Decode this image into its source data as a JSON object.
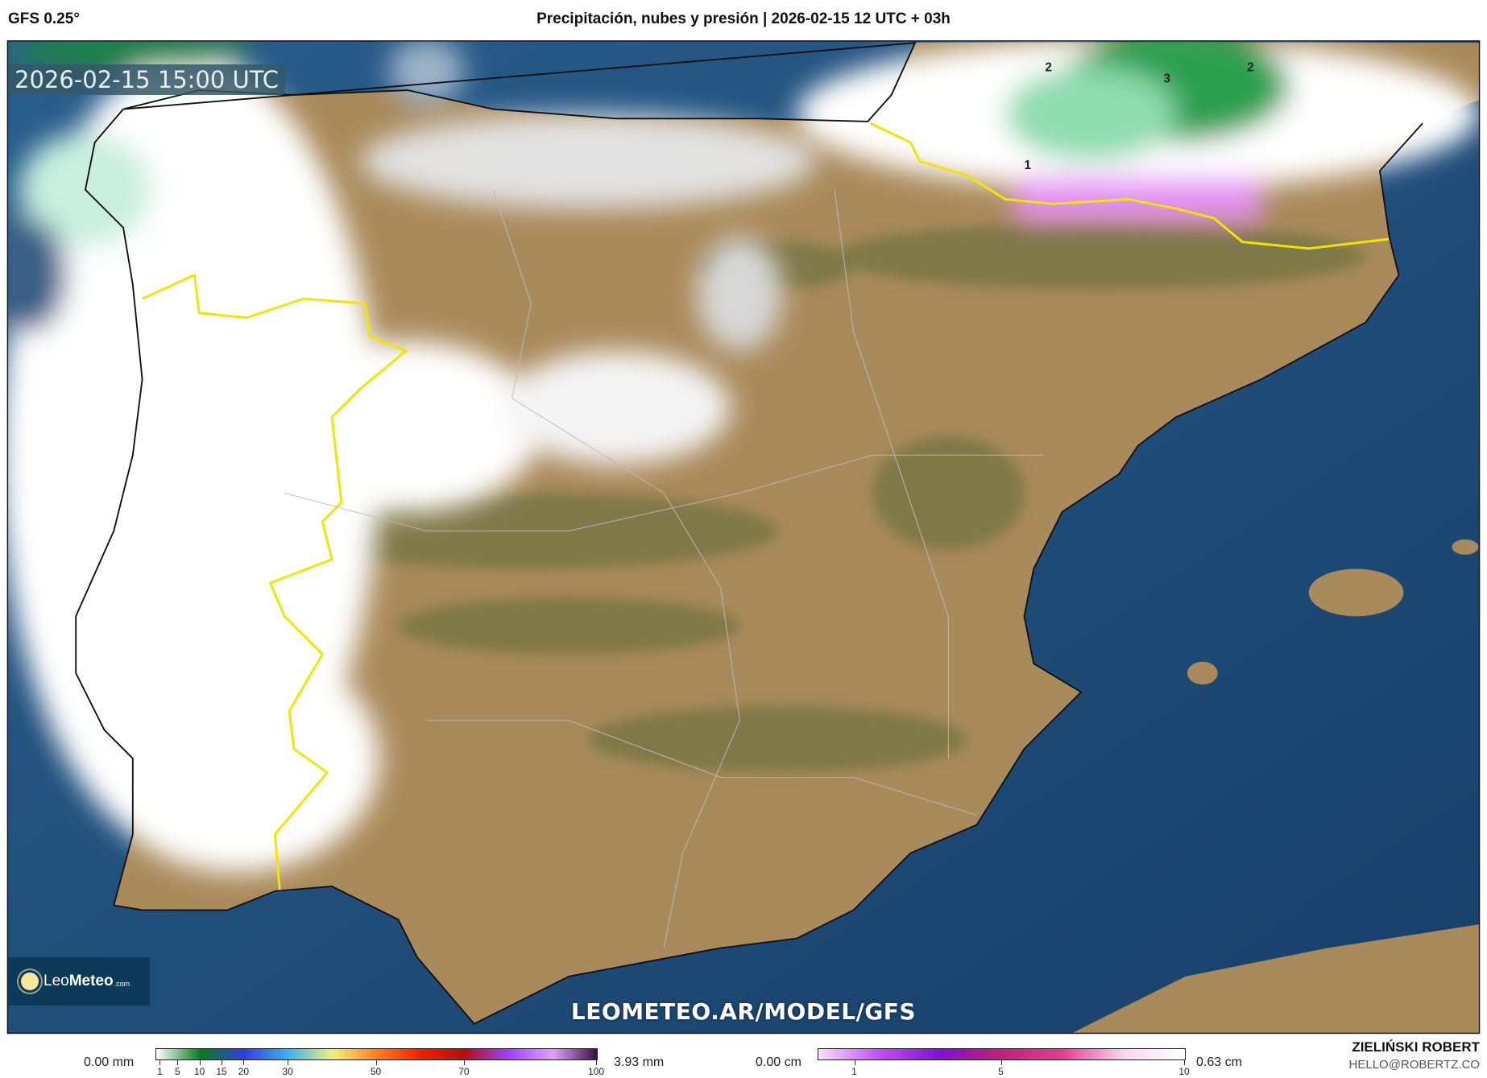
{
  "header": {
    "model": "GFS 0.25°",
    "title": "Precipitación, nubes y presión | 2026-02-15 12 UTC + 03h"
  },
  "map": {
    "timestamp": "2026-02-15 15:00 UTC",
    "watermark": "LEOMETEO.AR/MODEL/GFS",
    "isobar_labels": [
      "2",
      "3",
      "2",
      "1"
    ],
    "colors": {
      "sea": "#1f4c7a",
      "land": "#a98a5a",
      "border_highlight": "#f2e600",
      "precip_green": "#1f9a45",
      "snow_pink": "#e08cf0"
    }
  },
  "logo": {
    "prefix": "Leo",
    "bold": "Meteo",
    "suffix": ".com"
  },
  "legend_precip": {
    "min_label": "0.00 mm",
    "max_label": "3.93 mm",
    "range": [
      0,
      100
    ],
    "ticks": [
      "1",
      "5",
      "10",
      "15",
      "20",
      "30",
      "50",
      "70",
      "100"
    ],
    "gradient": [
      "#ffffff",
      "#0a7a20",
      "#3040e0",
      "#40b0f0",
      "#f0f080",
      "#ff8020",
      "#f02000",
      "#b01010",
      "#a040ff",
      "#e0a0ff",
      "#3a1040"
    ]
  },
  "legend_snow": {
    "min_label": "0.00 cm",
    "max_label": "0.63 cm",
    "range": [
      0,
      10
    ],
    "ticks": [
      "1",
      "5",
      "10"
    ],
    "gradient": [
      "#f8e0ff",
      "#c050f0",
      "#8010d0",
      "#c0207a",
      "#e04090",
      "#f8d8f0",
      "#ffffff"
    ]
  },
  "credits": {
    "name": "ZIELIŃSKI ROBERT",
    "email": "HELLO@ROBERTZ.CO"
  }
}
